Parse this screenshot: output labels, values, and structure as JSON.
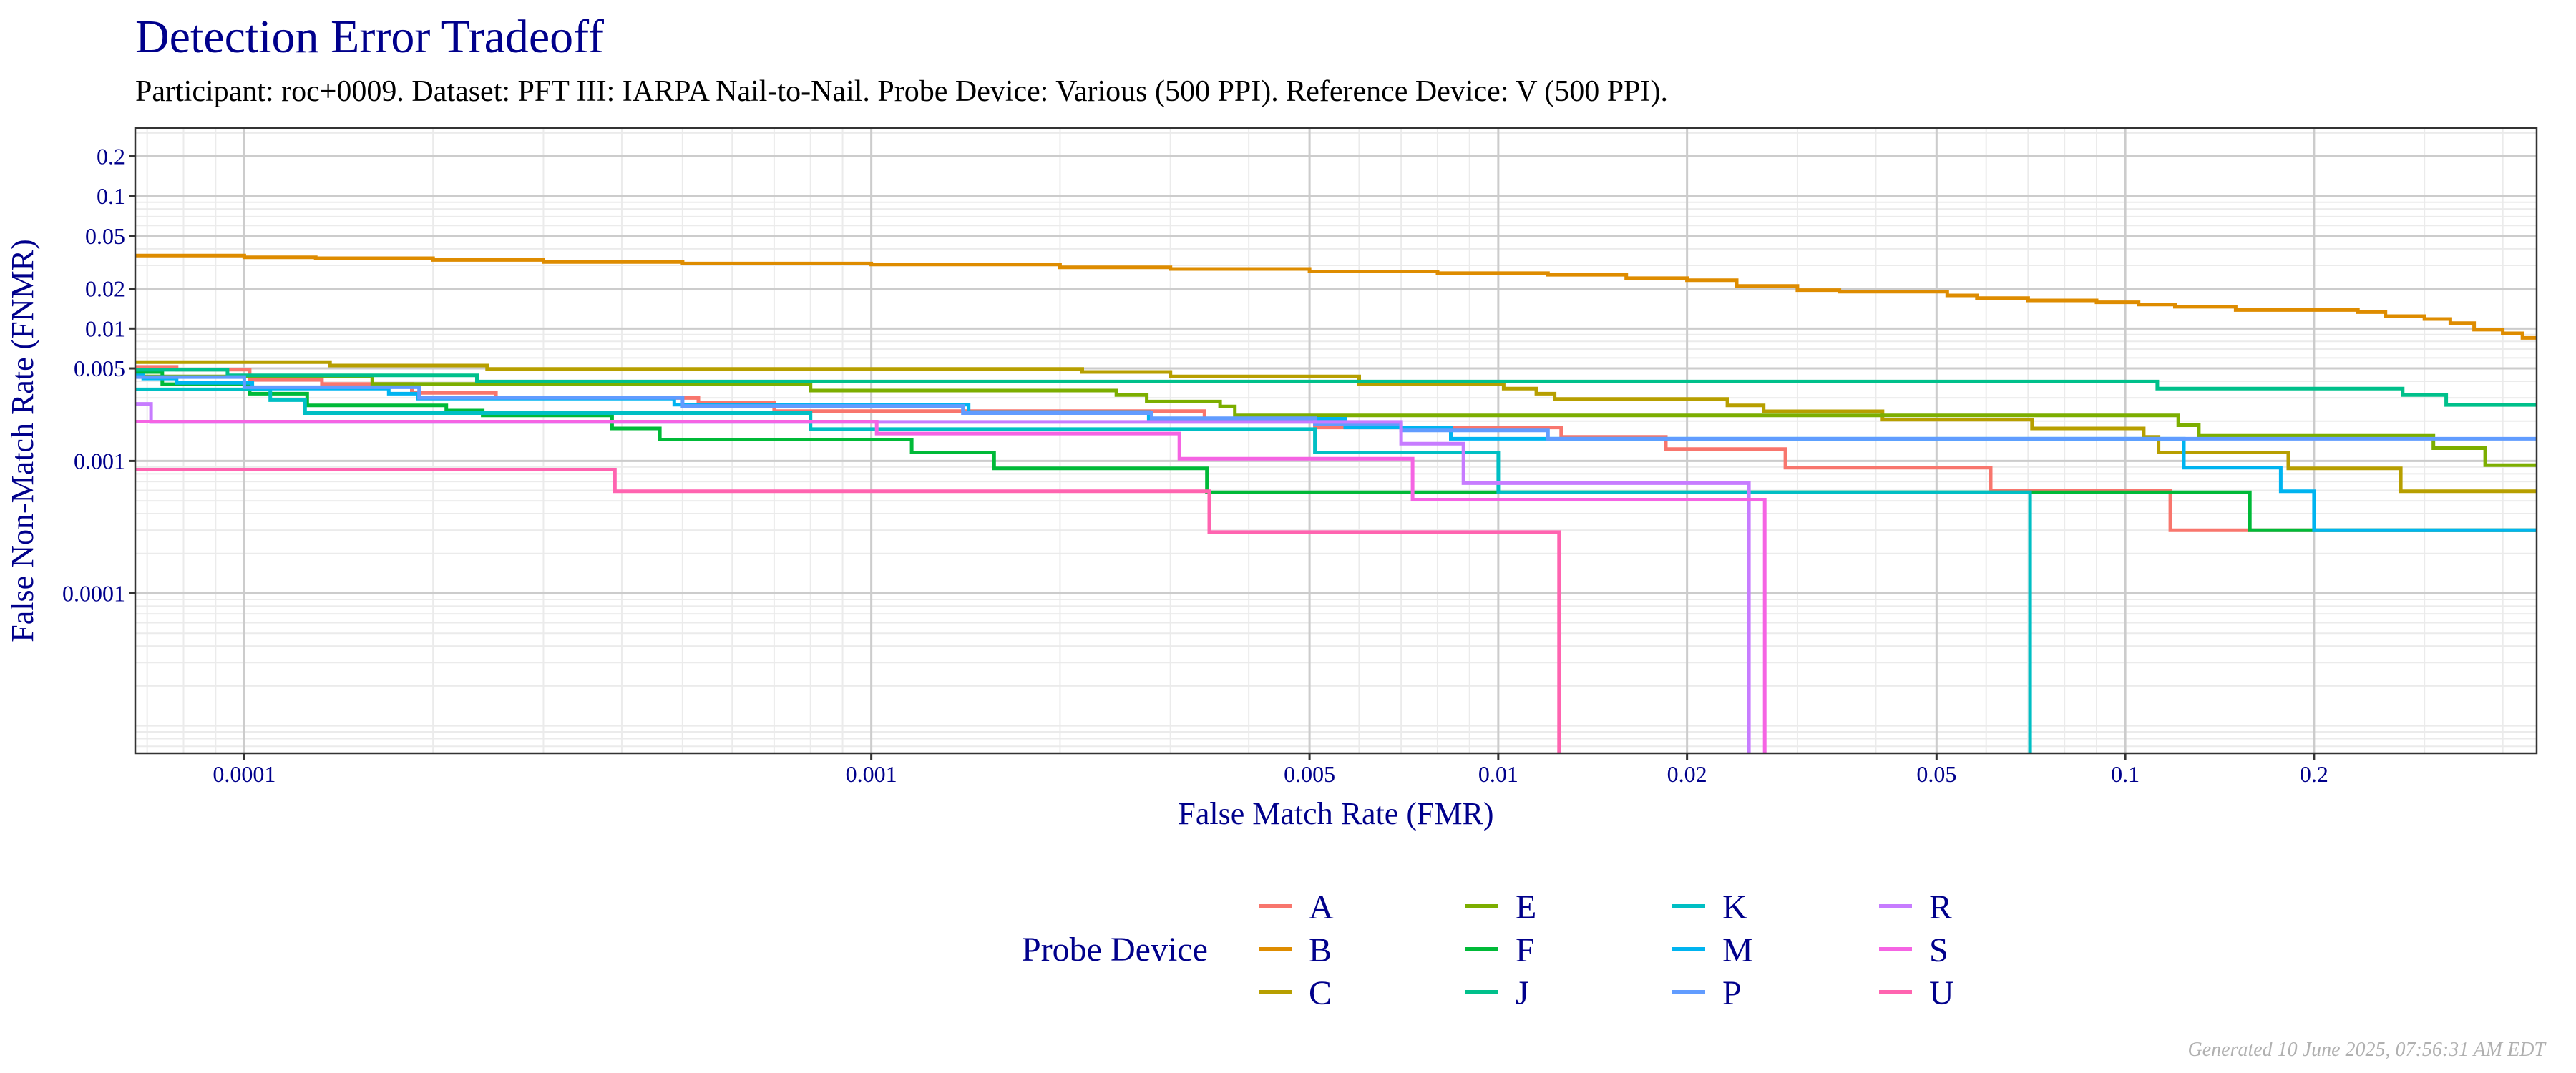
{
  "header": {
    "title": "Detection Error Tradeoff",
    "subtitle": "Participant: roc+0009. Dataset: PFT III: IARPA Nail-to-Nail. Probe Device: Various (500 PPI). Reference Device: V (500 PPI)."
  },
  "footer": {
    "generated": "Generated 10 June 2025, 07:56:31 AM EDT"
  },
  "chart_data": {
    "type": "line",
    "step": true,
    "title": "Detection Error Tradeoff",
    "xlabel": "False Match Rate (FMR)",
    "ylabel": "False Non-Match Rate (FNMR)",
    "xscale": "log",
    "yscale": "log",
    "xlim": [
      6.7e-05,
      0.453
    ],
    "ylim": [
      6.2e-06,
      0.327
    ],
    "grid": true,
    "xticks": [
      {
        "value": 0.0001,
        "label": "0.0001"
      },
      {
        "value": 0.001,
        "label": "0.001"
      },
      {
        "value": 0.005,
        "label": "0.005"
      },
      {
        "value": 0.01,
        "label": "0.01"
      },
      {
        "value": 0.02,
        "label": "0.02"
      },
      {
        "value": 0.05,
        "label": "0.05"
      },
      {
        "value": 0.1,
        "label": "0.1"
      },
      {
        "value": 0.2,
        "label": "0.2"
      }
    ],
    "yticks": [
      {
        "value": 0.2,
        "label": "0.2"
      },
      {
        "value": 0.1,
        "label": "0.1"
      },
      {
        "value": 0.05,
        "label": "0.05"
      },
      {
        "value": 0.02,
        "label": "0.02"
      },
      {
        "value": 0.01,
        "label": "0.01"
      },
      {
        "value": 0.005,
        "label": "0.005"
      },
      {
        "value": 0.001,
        "label": "0.001"
      },
      {
        "value": 0.0001,
        "label": "0.0001"
      }
    ],
    "legend": {
      "title": "Probe Device",
      "placement": "bottom"
    },
    "series": [
      {
        "name": "A",
        "color": "#F8766D",
        "points": [
          [
            6.7e-05,
            0.00514
          ],
          [
            7.8e-05,
            0.0049
          ],
          [
            0.000102,
            0.0041
          ],
          [
            0.000133,
            0.00382
          ],
          [
            0.000185,
            0.00327
          ],
          [
            0.000252,
            0.00299
          ],
          [
            0.00053,
            0.00275
          ],
          [
            0.0007,
            0.00238
          ],
          [
            0.0034,
            0.00208
          ],
          [
            0.0051,
            0.00179
          ],
          [
            0.0126,
            0.00152
          ],
          [
            0.0185,
            0.00123
          ],
          [
            0.0287,
            0.00089
          ],
          [
            0.061,
            0.0006
          ],
          [
            0.118,
            0.0003
          ]
        ]
      },
      {
        "name": "B",
        "color": "#DE8C00",
        "points": [
          [
            6.7e-05,
            0.0356
          ],
          [
            0.0001,
            0.0345
          ],
          [
            0.00013,
            0.034
          ],
          [
            0.0002,
            0.033
          ],
          [
            0.0003,
            0.0318
          ],
          [
            0.0005,
            0.031
          ],
          [
            0.001,
            0.0305
          ],
          [
            0.002,
            0.029
          ],
          [
            0.003,
            0.0282
          ],
          [
            0.005,
            0.027
          ],
          [
            0.008,
            0.0262
          ],
          [
            0.012,
            0.0255
          ],
          [
            0.016,
            0.024
          ],
          [
            0.02,
            0.0232
          ],
          [
            0.024,
            0.021
          ],
          [
            0.03,
            0.0195
          ],
          [
            0.035,
            0.019
          ],
          [
            0.052,
            0.0178
          ],
          [
            0.058,
            0.017
          ],
          [
            0.07,
            0.0163
          ],
          [
            0.09,
            0.0158
          ],
          [
            0.105,
            0.0152
          ],
          [
            0.12,
            0.0146
          ],
          [
            0.15,
            0.0138
          ],
          [
            0.235,
            0.0133
          ],
          [
            0.26,
            0.0124
          ],
          [
            0.3,
            0.0118
          ],
          [
            0.33,
            0.011
          ],
          [
            0.36,
            0.0098
          ],
          [
            0.4,
            0.0092
          ],
          [
            0.43,
            0.0085
          ]
        ]
      },
      {
        "name": "C",
        "color": "#B79F00",
        "points": [
          [
            6.7e-05,
            0.00558
          ],
          [
            0.000137,
            0.00526
          ],
          [
            0.000244,
            0.00495
          ],
          [
            0.00217,
            0.0047
          ],
          [
            0.003,
            0.00435
          ],
          [
            0.006,
            0.0038
          ],
          [
            0.0102,
            0.00352
          ],
          [
            0.0115,
            0.00322
          ],
          [
            0.0123,
            0.00294
          ],
          [
            0.0232,
            0.00263
          ],
          [
            0.0265,
            0.00237
          ],
          [
            0.041,
            0.00205
          ],
          [
            0.071,
            0.00176
          ],
          [
            0.107,
            0.00152
          ],
          [
            0.113,
            0.00116
          ],
          [
            0.182,
            0.00088
          ],
          [
            0.275,
            0.00059
          ]
        ]
      },
      {
        "name": "E",
        "color": "#7CAE00",
        "points": [
          [
            6.7e-05,
            0.00435
          ],
          [
            0.00016,
            0.00382
          ],
          [
            0.0008,
            0.0034
          ],
          [
            0.00246,
            0.00315
          ],
          [
            0.00275,
            0.00281
          ],
          [
            0.0036,
            0.00258
          ],
          [
            0.0038,
            0.00221
          ],
          [
            0.1215,
            0.00186
          ],
          [
            0.131,
            0.00155
          ],
          [
            0.31,
            0.00125
          ],
          [
            0.375,
            0.00093
          ]
        ]
      },
      {
        "name": "F",
        "color": "#00BA38",
        "points": [
          [
            6.7e-05,
            0.0047
          ],
          [
            7.4e-05,
            0.0038
          ],
          [
            0.000102,
            0.00322
          ],
          [
            0.000126,
            0.00263
          ],
          [
            0.00021,
            0.0024
          ],
          [
            0.00024,
            0.00221
          ],
          [
            0.000386,
            0.00176
          ],
          [
            0.00046,
            0.00145
          ],
          [
            0.00116,
            0.00116
          ],
          [
            0.00157,
            0.00088
          ],
          [
            0.00343,
            0.00058
          ],
          [
            0.158,
            0.0003
          ]
        ]
      },
      {
        "name": "J",
        "color": "#00C08B",
        "points": [
          [
            6.7e-05,
            0.00489
          ],
          [
            9.4e-05,
            0.00443
          ],
          [
            0.000235,
            0.00398
          ],
          [
            0.1125,
            0.00352
          ],
          [
            0.277,
            0.00315
          ],
          [
            0.325,
            0.00265
          ]
        ]
      },
      {
        "name": "K",
        "color": "#00BFC4",
        "points": [
          [
            6.7e-05,
            0.00347
          ],
          [
            0.00011,
            0.00288
          ],
          [
            0.000125,
            0.0023
          ],
          [
            0.0008,
            0.00174
          ],
          [
            0.0051,
            0.00116
          ],
          [
            0.01,
            0.00058
          ],
          [
            0.0705,
            0
          ]
        ]
      },
      {
        "name": "M",
        "color": "#00B4F0",
        "points": [
          [
            6.7e-05,
            0.00443
          ],
          [
            6.9e-05,
            0.0042
          ],
          [
            7.8e-05,
            0.00389
          ],
          [
            0.000103,
            0.00352
          ],
          [
            0.00017,
            0.00322
          ],
          [
            0.000189,
            0.00296
          ],
          [
            0.000485,
            0.00266
          ],
          [
            0.00143,
            0.00234
          ],
          [
            0.00277,
            0.00208
          ],
          [
            0.0057,
            0.00179
          ],
          [
            0.0084,
            0.00147
          ],
          [
            0.124,
            0.00089
          ],
          [
            0.177,
            0.00059
          ],
          [
            0.2,
            0.0003
          ]
        ]
      },
      {
        "name": "P",
        "color": "#619CFF",
        "points": [
          [
            6.7e-05,
            0.0043
          ],
          [
            0.0001,
            0.0036
          ],
          [
            0.00019,
            0.003
          ],
          [
            0.0005,
            0.0026
          ],
          [
            0.0014,
            0.0023
          ],
          [
            0.0028,
            0.0021
          ],
          [
            0.0051,
            0.0019
          ],
          [
            0.007,
            0.0017
          ],
          [
            0.012,
            0.00147
          ]
        ]
      },
      {
        "name": "R",
        "color": "#C77CFF",
        "points": [
          [
            6.7e-05,
            0.0027
          ],
          [
            7.1e-05,
            0.00197
          ],
          [
            0.007,
            0.00135
          ],
          [
            0.0088,
            0.00068
          ],
          [
            0.0251,
            0
          ]
        ]
      },
      {
        "name": "S",
        "color": "#F564E3",
        "points": [
          [
            6.7e-05,
            0.00198
          ],
          [
            0.00102,
            0.00161
          ],
          [
            0.0031,
            0.00104
          ],
          [
            0.0073,
            0.00051
          ],
          [
            0.0266,
            0
          ]
        ]
      },
      {
        "name": "U",
        "color": "#FF64B0",
        "points": [
          [
            6.7e-05,
            0.00086
          ],
          [
            0.00039,
            0.00059
          ],
          [
            0.00346,
            0.00029
          ],
          [
            0.0125,
            0
          ]
        ]
      }
    ]
  }
}
